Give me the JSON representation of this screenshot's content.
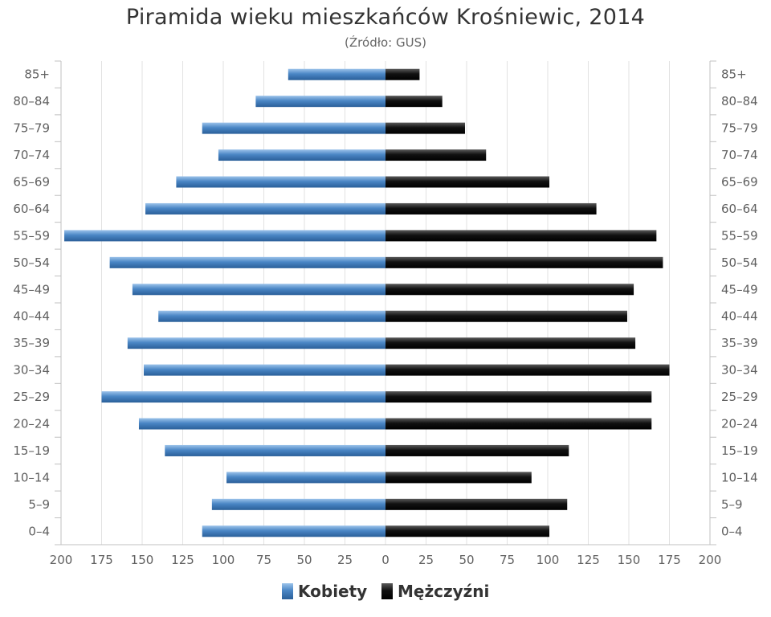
{
  "chart_data": {
    "type": "bar",
    "orientation": "horizontal",
    "title": "Piramida wieku mieszkańców Krośniewic, 2014",
    "subtitle": "(Źródło: GUS)",
    "categories": [
      "85+",
      "80-84",
      "75-79",
      "70-74",
      "65-69",
      "60-64",
      "55-59",
      "50-54",
      "45-49",
      "40-44",
      "35-39",
      "30-34",
      "25-29",
      "20-24",
      "15-19",
      "10-14",
      "5-9",
      "0-4"
    ],
    "category_labels": [
      "85+",
      "80–84",
      "75–79",
      "70–74",
      "65–69",
      "60–64",
      "55–59",
      "50–54",
      "45–49",
      "40–44",
      "35–39",
      "30–34",
      "25–29",
      "20–24",
      "15–19",
      "10–14",
      "5–9",
      "0–4"
    ],
    "series": [
      {
        "name": "Kobiety",
        "color": "#4a86c5",
        "side": "left",
        "values": [
          60,
          80,
          113,
          103,
          129,
          148,
          198,
          170,
          156,
          140,
          159,
          149,
          175,
          152,
          136,
          98,
          107,
          113
        ]
      },
      {
        "name": "Mężczyźni",
        "color": "#111111",
        "side": "right",
        "values": [
          21,
          35,
          49,
          62,
          101,
          130,
          167,
          171,
          153,
          149,
          154,
          175,
          164,
          164,
          113,
          90,
          112,
          101
        ]
      }
    ],
    "x_ticks": [
      200,
      175,
      150,
      125,
      100,
      75,
      50,
      25,
      0,
      25,
      50,
      75,
      100,
      125,
      150,
      175,
      200
    ],
    "xlim": [
      -200,
      200
    ],
    "grid": true,
    "legend": "bottom-center"
  }
}
